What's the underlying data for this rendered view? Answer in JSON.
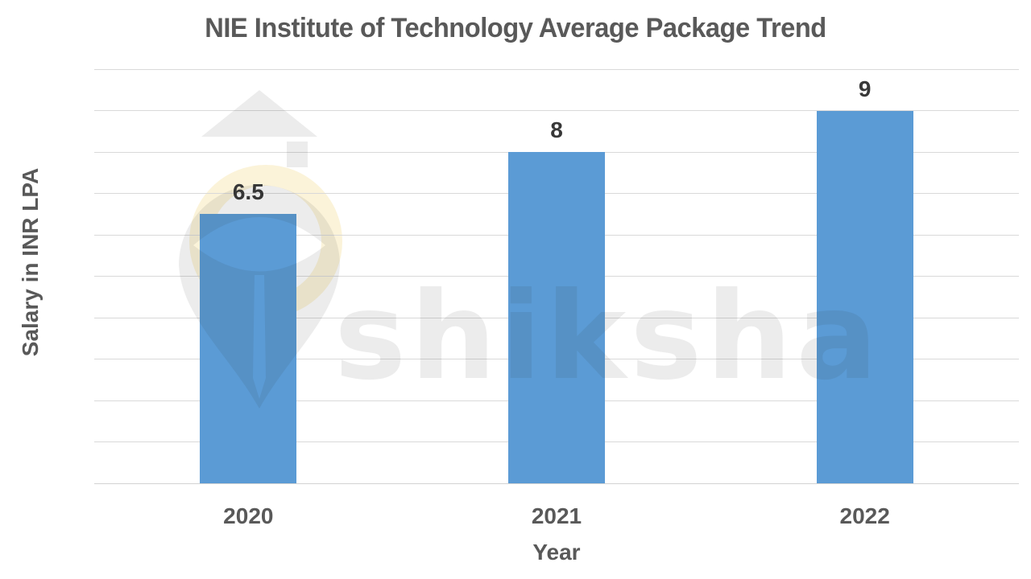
{
  "chart_data": {
    "type": "bar",
    "title": "NIE Institute of Technology Average Package Trend",
    "categories": [
      "2020",
      "2021",
      "2022"
    ],
    "values": [
      6.5,
      8,
      9
    ],
    "value_labels": [
      "6.5",
      "8",
      "9"
    ],
    "xlabel": "Year",
    "ylabel": "Salary in INR LPA",
    "ylim": [
      0,
      10
    ],
    "yticks": [
      0,
      1,
      2,
      3,
      4,
      5,
      6,
      7,
      8,
      9,
      10
    ],
    "grid": true,
    "legend": false,
    "bar_color": "#5B9BD5"
  },
  "watermark": {
    "text": "shiksha",
    "logo": "shiksha-graduation-cap-pen-nib"
  },
  "colors": {
    "bar": "#5B9BD5",
    "grid": "#D9D9D9",
    "axis_text": "#595959",
    "data_label": "#383838",
    "title_text": "#595959",
    "background": "#FFFFFF",
    "watermark": "rgba(40,40,40,0.09)"
  }
}
